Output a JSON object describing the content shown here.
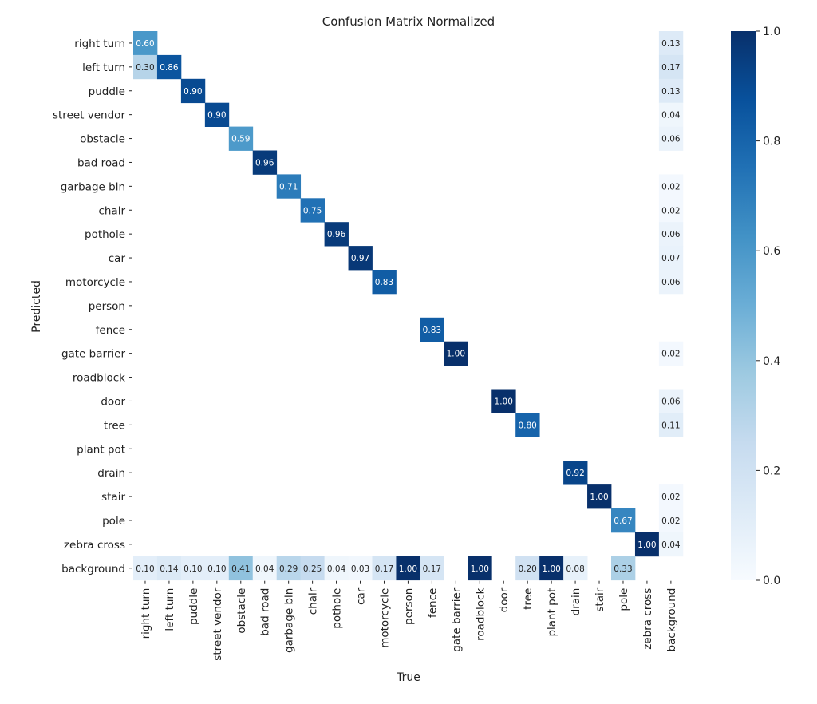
{
  "chart_data": {
    "type": "heatmap",
    "title": "Confusion Matrix Normalized",
    "xlabel": "True",
    "ylabel": "Predicted",
    "colormap": "Blues",
    "colorbar": {
      "range": [
        0.0,
        1.0
      ],
      "ticks": [
        "0.0",
        "0.2",
        "0.4",
        "0.6",
        "0.8",
        "1.0"
      ]
    },
    "zero_cells_hidden": true,
    "categories": [
      "right turn",
      "left turn",
      "puddle",
      "street vendor",
      "obstacle",
      "bad road",
      "garbage bin",
      "chair",
      "pothole",
      "car",
      "motorcycle",
      "person",
      "fence",
      "gate barrier",
      "roadblock",
      "door",
      "tree",
      "plant pot",
      "drain",
      "stair",
      "pole",
      "zebra cross",
      "background"
    ],
    "cells": [
      {
        "row": "right turn",
        "col": "right turn",
        "value": 0.6
      },
      {
        "row": "right turn",
        "col": "background",
        "value": 0.13
      },
      {
        "row": "left turn",
        "col": "right turn",
        "value": 0.3
      },
      {
        "row": "left turn",
        "col": "left turn",
        "value": 0.86
      },
      {
        "row": "left turn",
        "col": "background",
        "value": 0.17
      },
      {
        "row": "puddle",
        "col": "puddle",
        "value": 0.9
      },
      {
        "row": "puddle",
        "col": "background",
        "value": 0.13
      },
      {
        "row": "street vendor",
        "col": "street vendor",
        "value": 0.9
      },
      {
        "row": "street vendor",
        "col": "background",
        "value": 0.04
      },
      {
        "row": "obstacle",
        "col": "obstacle",
        "value": 0.59
      },
      {
        "row": "obstacle",
        "col": "background",
        "value": 0.06
      },
      {
        "row": "bad road",
        "col": "bad road",
        "value": 0.96
      },
      {
        "row": "garbage bin",
        "col": "garbage bin",
        "value": 0.71
      },
      {
        "row": "garbage bin",
        "col": "background",
        "value": 0.02
      },
      {
        "row": "chair",
        "col": "chair",
        "value": 0.75
      },
      {
        "row": "chair",
        "col": "background",
        "value": 0.02
      },
      {
        "row": "pothole",
        "col": "pothole",
        "value": 0.96
      },
      {
        "row": "pothole",
        "col": "background",
        "value": 0.06
      },
      {
        "row": "car",
        "col": "car",
        "value": 0.97
      },
      {
        "row": "car",
        "col": "background",
        "value": 0.07
      },
      {
        "row": "motorcycle",
        "col": "motorcycle",
        "value": 0.83
      },
      {
        "row": "motorcycle",
        "col": "background",
        "value": 0.06
      },
      {
        "row": "fence",
        "col": "fence",
        "value": 0.83
      },
      {
        "row": "gate barrier",
        "col": "gate barrier",
        "value": 1.0
      },
      {
        "row": "gate barrier",
        "col": "background",
        "value": 0.02
      },
      {
        "row": "door",
        "col": "door",
        "value": 1.0
      },
      {
        "row": "door",
        "col": "background",
        "value": 0.06
      },
      {
        "row": "tree",
        "col": "tree",
        "value": 0.8
      },
      {
        "row": "tree",
        "col": "background",
        "value": 0.11
      },
      {
        "row": "drain",
        "col": "drain",
        "value": 0.92
      },
      {
        "row": "stair",
        "col": "stair",
        "value": 1.0
      },
      {
        "row": "stair",
        "col": "background",
        "value": 0.02
      },
      {
        "row": "pole",
        "col": "pole",
        "value": 0.67
      },
      {
        "row": "pole",
        "col": "background",
        "value": 0.02
      },
      {
        "row": "zebra cross",
        "col": "zebra cross",
        "value": 1.0
      },
      {
        "row": "zebra cross",
        "col": "background",
        "value": 0.04
      },
      {
        "row": "background",
        "col": "right turn",
        "value": 0.1
      },
      {
        "row": "background",
        "col": "left turn",
        "value": 0.14
      },
      {
        "row": "background",
        "col": "puddle",
        "value": 0.1
      },
      {
        "row": "background",
        "col": "street vendor",
        "value": 0.1
      },
      {
        "row": "background",
        "col": "obstacle",
        "value": 0.41
      },
      {
        "row": "background",
        "col": "bad road",
        "value": 0.04
      },
      {
        "row": "background",
        "col": "garbage bin",
        "value": 0.29
      },
      {
        "row": "background",
        "col": "chair",
        "value": 0.25
      },
      {
        "row": "background",
        "col": "pothole",
        "value": 0.04
      },
      {
        "row": "background",
        "col": "car",
        "value": 0.03
      },
      {
        "row": "background",
        "col": "motorcycle",
        "value": 0.17
      },
      {
        "row": "background",
        "col": "person",
        "value": 1.0
      },
      {
        "row": "background",
        "col": "fence",
        "value": 0.17
      },
      {
        "row": "background",
        "col": "roadblock",
        "value": 1.0
      },
      {
        "row": "background",
        "col": "tree",
        "value": 0.2
      },
      {
        "row": "background",
        "col": "plant pot",
        "value": 1.0
      },
      {
        "row": "background",
        "col": "drain",
        "value": 0.08
      },
      {
        "row": "background",
        "col": "pole",
        "value": 0.33
      }
    ]
  }
}
